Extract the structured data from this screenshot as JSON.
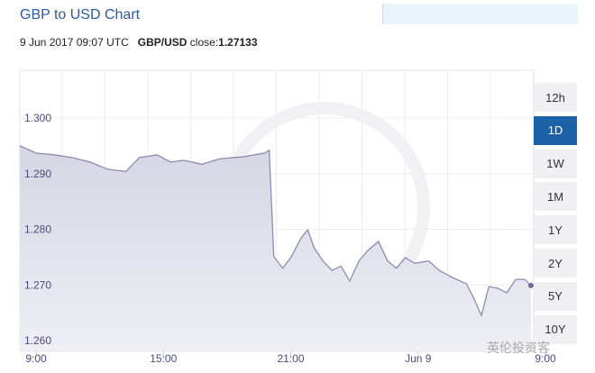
{
  "header": {
    "title": "GBP to USD Chart",
    "datetime": "9 Jun 2017 09:07 UTC",
    "pair": "GBP/USD",
    "close_label": "close:",
    "close_value": "1.27133"
  },
  "range_buttons": [
    {
      "label": "12h"
    },
    {
      "label": "1D",
      "active": true
    },
    {
      "label": "1W"
    },
    {
      "label": "1M"
    },
    {
      "label": "1Y"
    },
    {
      "label": "2Y"
    },
    {
      "label": "5Y"
    },
    {
      "label": "10Y"
    }
  ],
  "watermark": "英伦投资客",
  "colors": {
    "accent": "#1d62a8",
    "line": "#8c8cae",
    "fill": "#d9d9e6",
    "axis_text": "#4a4a7e"
  },
  "chart_data": {
    "type": "area",
    "ylim": [
      1.258,
      1.305
    ],
    "y_ticks": [
      "1.300",
      "1.290",
      "1.280",
      "1.270",
      "1.260"
    ],
    "x_ticks": [
      {
        "t": "2017-06-08T09:00",
        "label": "9:00"
      },
      {
        "t": "2017-06-08T15:00",
        "label": "15:00"
      },
      {
        "t": "2017-06-08T21:00",
        "label": "21:00"
      },
      {
        "t": "2017-06-09T03:00",
        "label": "Jun 9"
      },
      {
        "t": "2017-06-09T09:00",
        "label": "9:00"
      }
    ],
    "grid": true,
    "points": [
      [
        "2017-06-08T08:14",
        1.295
      ],
      [
        "2017-06-08T09:00",
        1.2937
      ],
      [
        "2017-06-08T09:51",
        1.2934
      ],
      [
        "2017-06-08T10:41",
        1.2929
      ],
      [
        "2017-06-08T11:32",
        1.2921
      ],
      [
        "2017-06-08T12:23",
        1.2908
      ],
      [
        "2017-06-08T13:14",
        1.2904
      ],
      [
        "2017-06-08T13:52",
        1.2929
      ],
      [
        "2017-06-08T14:42",
        1.2934
      ],
      [
        "2017-06-08T15:20",
        1.2921
      ],
      [
        "2017-06-08T15:58",
        1.2924
      ],
      [
        "2017-06-08T16:49",
        1.2917
      ],
      [
        "2017-06-08T17:40",
        1.2927
      ],
      [
        "2017-06-08T18:43",
        1.293
      ],
      [
        "2017-06-08T19:46",
        1.2937
      ],
      [
        "2017-06-08T19:59",
        1.2942
      ],
      [
        "2017-06-08T20:12",
        1.2751
      ],
      [
        "2017-06-08T20:37",
        1.273
      ],
      [
        "2017-06-08T21:02",
        1.2751
      ],
      [
        "2017-06-08T21:28",
        1.2783
      ],
      [
        "2017-06-08T21:48",
        1.2799
      ],
      [
        "2017-06-08T22:06",
        1.2767
      ],
      [
        "2017-06-08T22:31",
        1.2743
      ],
      [
        "2017-06-08T22:57",
        1.2726
      ],
      [
        "2017-06-08T23:22",
        1.2734
      ],
      [
        "2017-06-08T23:47",
        1.2707
      ],
      [
        "2017-06-09T00:13",
        1.2743
      ],
      [
        "2017-06-09T00:38",
        1.2762
      ],
      [
        "2017-06-09T01:08",
        1.2778
      ],
      [
        "2017-06-09T01:34",
        1.2743
      ],
      [
        "2017-06-09T01:59",
        1.273
      ],
      [
        "2017-06-09T02:24",
        1.2749
      ],
      [
        "2017-06-09T02:50",
        1.2739
      ],
      [
        "2017-06-09T03:30",
        1.2743
      ],
      [
        "2017-06-09T04:00",
        1.2726
      ],
      [
        "2017-06-09T04:38",
        1.2713
      ],
      [
        "2017-06-09T05:17",
        1.2702
      ],
      [
        "2017-06-09T05:42",
        1.267
      ],
      [
        "2017-06-09T05:59",
        1.2645
      ],
      [
        "2017-06-09T06:20",
        1.2697
      ],
      [
        "2017-06-09T06:46",
        1.2694
      ],
      [
        "2017-06-09T07:11",
        1.2686
      ],
      [
        "2017-06-09T07:36",
        1.271
      ],
      [
        "2017-06-09T08:02",
        1.271
      ],
      [
        "2017-06-09T08:19",
        1.2699
      ]
    ]
  }
}
